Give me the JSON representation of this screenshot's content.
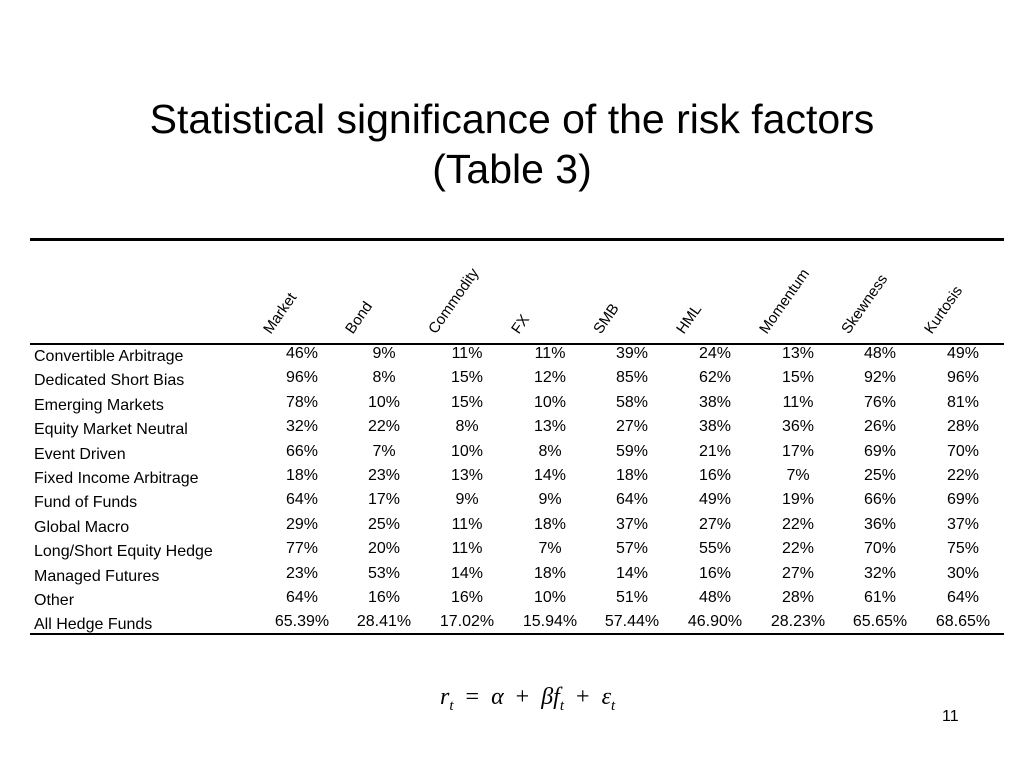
{
  "slide": {
    "title_line1": "Statistical significance of the risk factors",
    "title_line2": "(Table 3)",
    "page_number": "11"
  },
  "table": {
    "columns": [
      "Market",
      "Bond",
      "Commodity",
      "FX",
      "SMB",
      "HML",
      "Momentum",
      "Skewness",
      "Kurtosis"
    ],
    "rows": [
      {
        "label": "Convertible Arbitrage",
        "values": [
          "46%",
          "9%",
          "11%",
          "11%",
          "39%",
          "24%",
          "13%",
          "48%",
          "49%"
        ]
      },
      {
        "label": "Dedicated Short Bias",
        "values": [
          "96%",
          "8%",
          "15%",
          "12%",
          "85%",
          "62%",
          "15%",
          "92%",
          "96%"
        ]
      },
      {
        "label": "Emerging Markets",
        "values": [
          "78%",
          "10%",
          "15%",
          "10%",
          "58%",
          "38%",
          "11%",
          "76%",
          "81%"
        ]
      },
      {
        "label": "Equity Market Neutral",
        "values": [
          "32%",
          "22%",
          "8%",
          "13%",
          "27%",
          "38%",
          "36%",
          "26%",
          "28%"
        ]
      },
      {
        "label": "Event Driven",
        "values": [
          "66%",
          "7%",
          "10%",
          "8%",
          "59%",
          "21%",
          "17%",
          "69%",
          "70%"
        ]
      },
      {
        "label": "Fixed Income Arbitrage",
        "values": [
          "18%",
          "23%",
          "13%",
          "14%",
          "18%",
          "16%",
          "7%",
          "25%",
          "22%"
        ]
      },
      {
        "label": "Fund of Funds",
        "values": [
          "64%",
          "17%",
          "9%",
          "9%",
          "64%",
          "49%",
          "19%",
          "66%",
          "69%"
        ]
      },
      {
        "label": "Global Macro",
        "values": [
          "29%",
          "25%",
          "11%",
          "18%",
          "37%",
          "27%",
          "22%",
          "36%",
          "37%"
        ]
      },
      {
        "label": "Long/Short Equity Hedge",
        "values": [
          "77%",
          "20%",
          "11%",
          "7%",
          "57%",
          "55%",
          "22%",
          "70%",
          "75%"
        ]
      },
      {
        "label": "Managed Futures",
        "values": [
          "23%",
          "53%",
          "14%",
          "18%",
          "14%",
          "16%",
          "27%",
          "32%",
          "30%"
        ]
      },
      {
        "label": "Other",
        "values": [
          "64%",
          "16%",
          "16%",
          "10%",
          "51%",
          "48%",
          "28%",
          "61%",
          "64%"
        ]
      },
      {
        "label": "All Hedge Funds",
        "values": [
          "65.39%",
          "28.41%",
          "17.02%",
          "15.94%",
          "57.44%",
          "46.90%",
          "28.23%",
          "65.65%",
          "68.65%"
        ]
      }
    ]
  },
  "formula": {
    "lhs": "r",
    "lhs_sub": "t",
    "eq": "=",
    "alpha": "α",
    "plus1": "+",
    "beta_f": "βf",
    "beta_f_sub": "t",
    "plus2": "+",
    "eps": "ε",
    "eps_sub": "t"
  }
}
